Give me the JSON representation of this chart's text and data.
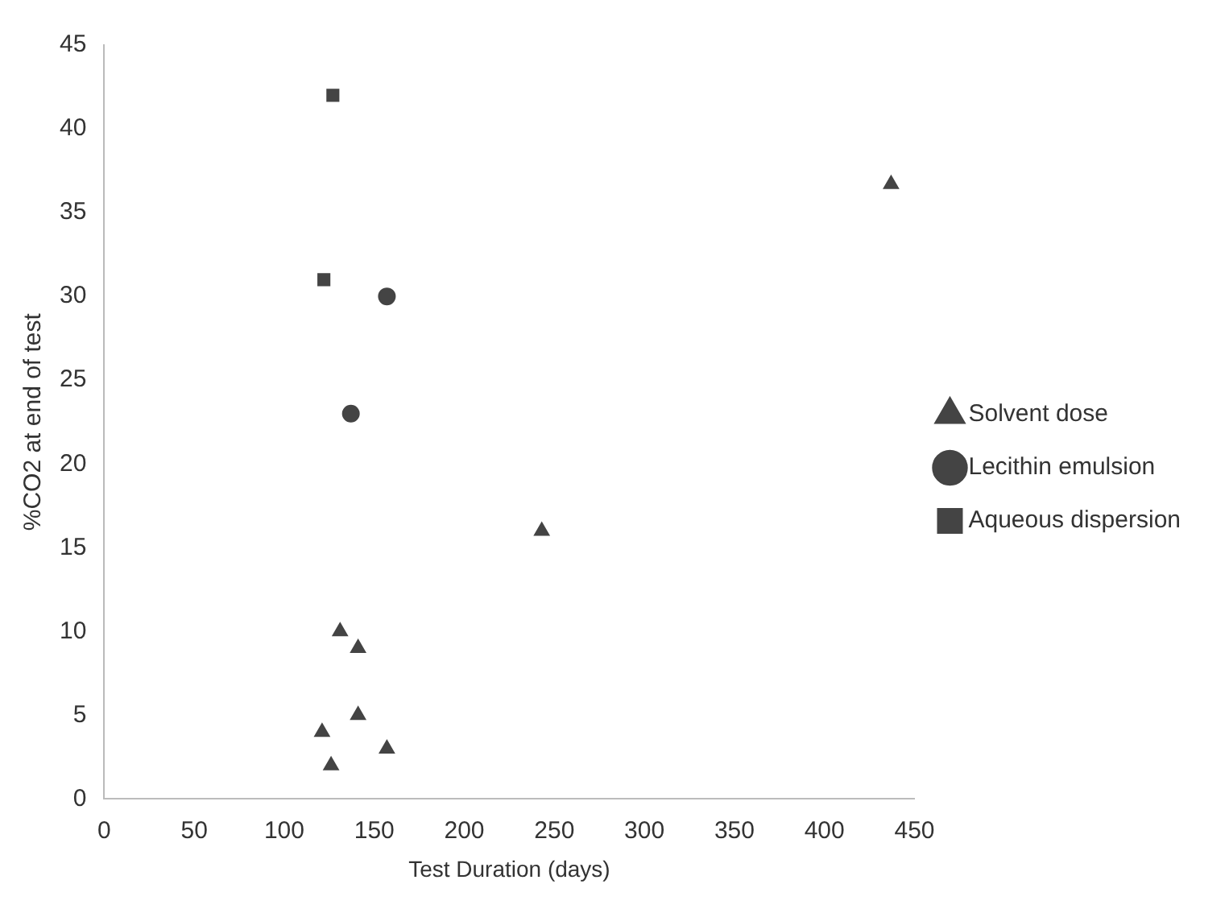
{
  "chart_data": {
    "type": "scatter",
    "xlabel": "Test Duration (days)",
    "ylabel": "%CO2 at end of test",
    "xlim": [
      0,
      450
    ],
    "xticks": [
      0,
      50,
      100,
      150,
      200,
      250,
      300,
      350,
      400,
      450
    ],
    "ylim": [
      0,
      45
    ],
    "yticks": [
      0,
      5,
      10,
      15,
      20,
      25,
      30,
      35,
      40,
      45
    ],
    "grid": false,
    "legend": "right",
    "series": [
      {
        "name": "Solvent dose",
        "color": "#444444",
        "marker": "triangle",
        "x": [
          131,
          141,
          141,
          121,
          157,
          126,
          437,
          243
        ],
        "values": [
          10,
          9,
          5,
          4,
          3,
          2,
          36.7,
          16
        ]
      },
      {
        "name": "Lecithin emulsion",
        "color": "#444444",
        "marker": "circle",
        "x": [
          157,
          137
        ],
        "values": [
          30,
          23
        ]
      },
      {
        "name": "Aqueous dispersion",
        "color": "#444444",
        "marker": "square",
        "x": [
          127,
          122
        ],
        "values": [
          42,
          31
        ]
      }
    ]
  }
}
